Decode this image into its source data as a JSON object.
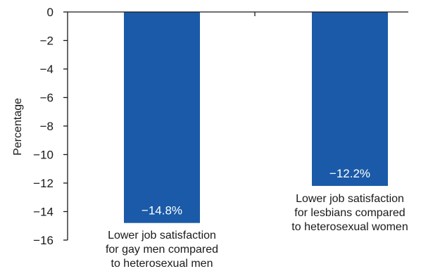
{
  "chart_data": {
    "type": "bar",
    "title": "",
    "xlabel": "",
    "ylabel": "Percentage",
    "ylim": [
      -16,
      0
    ],
    "yticks": [
      0,
      -2,
      -4,
      -6,
      -8,
      -10,
      -12,
      -14,
      -16
    ],
    "ytick_labels": [
      "0",
      "−2",
      "−4",
      "−6",
      "−8",
      "−10",
      "−12",
      "−14",
      "−16"
    ],
    "grid": false,
    "categories": [
      [
        "Lower job satisfaction",
        "for gay men compared",
        "to heterosexual men"
      ],
      [
        "Lower job satisfaction",
        "for lesbians compared",
        "to heterosexual women"
      ]
    ],
    "values": [
      -14.8,
      -12.2
    ],
    "data_labels": [
      "−14.8%",
      "−12.2%"
    ],
    "colors": {
      "bar": "#1a5aa8",
      "axis": "#1a1a1a",
      "text": "#1a1a1a",
      "bar_label": "#ffffff"
    }
  }
}
